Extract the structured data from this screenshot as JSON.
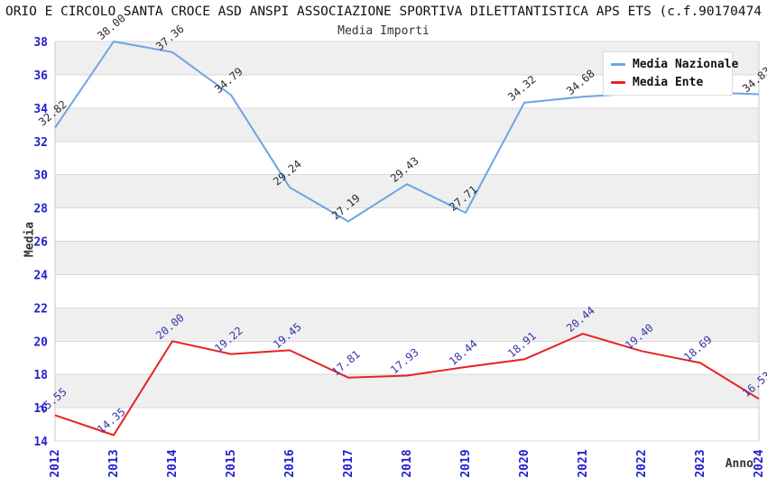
{
  "header": {
    "title": "ORIO E CIRCOLO SANTA CROCE ASD ANSPI ASSOCIAZIONE SPORTIVA DILETTANTISTICA APS ETS (c.f.90170474",
    "subtitle": "Media Importi"
  },
  "colors": {
    "axis_tick_label": "#2222cc",
    "band_gray": "#efefef",
    "gridline": "#d9d9d9",
    "plot_border": "#c8c8c8",
    "nazionale_line": "#6fa3e6",
    "ente_line": "#e62222",
    "nazionale_point_label": "#2b2b2b",
    "ente_point_label": "#3333aa"
  },
  "chart_data": {
    "type": "line",
    "title": "Media Importi",
    "xlabel": "Anno",
    "ylabel": "Media",
    "x": [
      2012,
      2013,
      2014,
      2015,
      2016,
      2017,
      2018,
      2019,
      2020,
      2021,
      2022,
      2023,
      2024
    ],
    "ylim": [
      14,
      38
    ],
    "ytick_step": 2,
    "grid": "horizontal gridlines every 2 units with alternating light-gray bands",
    "legend_position": "top-right",
    "series": [
      {
        "name": "Media Nazionale",
        "color": "#6fa3e6",
        "label_color": "#2b2b2b",
        "values": [
          32.82,
          38.0,
          37.36,
          34.79,
          29.24,
          27.19,
          29.43,
          27.71,
          34.32,
          34.68,
          34.9,
          34.95,
          34.83
        ],
        "point_labels": [
          "32.82",
          "38.00",
          "37.36",
          "34.79",
          "29.24",
          "27.19",
          "29.43",
          "27.71",
          "34.32",
          "34.68",
          null,
          null,
          "34.83"
        ]
      },
      {
        "name": "Media Ente",
        "color": "#e62222",
        "label_color": "#3333aa",
        "values": [
          15.55,
          14.35,
          20.0,
          19.22,
          19.45,
          17.81,
          17.93,
          18.44,
          18.91,
          20.44,
          19.4,
          18.69,
          16.53
        ],
        "point_labels": [
          "15.55",
          "14.35",
          "20.00",
          "19.22",
          "19.45",
          "17.81",
          "17.93",
          "18.44",
          "18.91",
          "20.44",
          "19.40",
          "18.69",
          "16.53"
        ]
      }
    ]
  }
}
